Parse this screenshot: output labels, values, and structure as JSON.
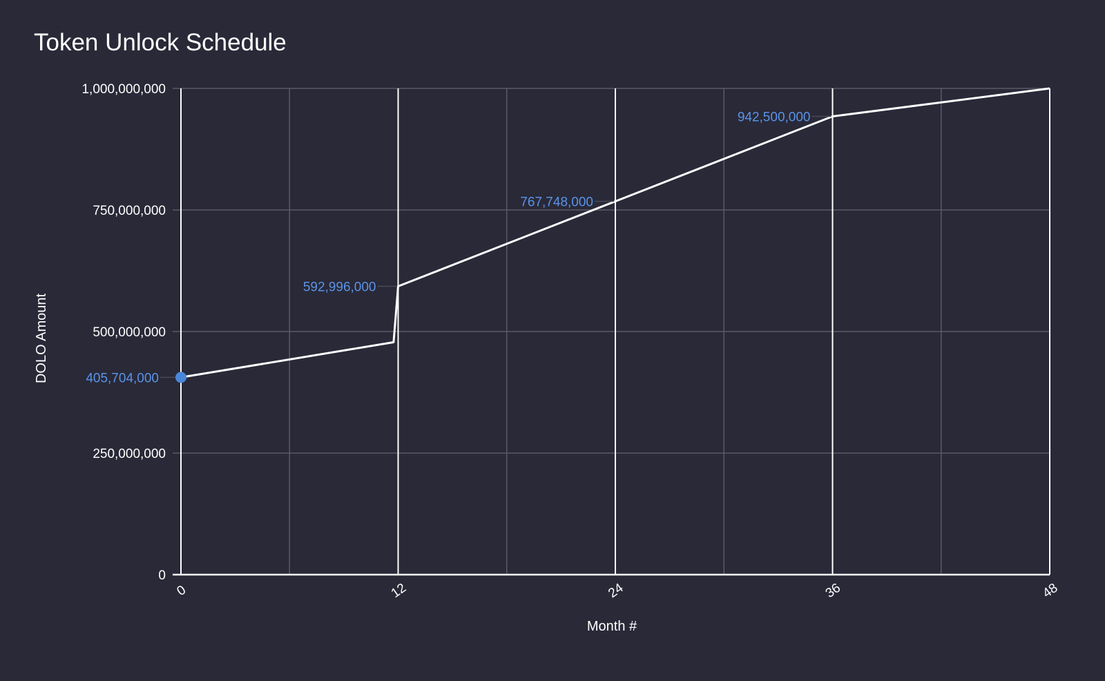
{
  "chart_data": {
    "type": "line",
    "title": "Token Unlock Schedule",
    "xlabel": "Month #",
    "ylabel": "DOLO Amount",
    "xlim": [
      0,
      48
    ],
    "ylim": [
      0,
      1000000000
    ],
    "x_ticks": [
      "0",
      "12",
      "24",
      "36",
      "48"
    ],
    "y_ticks": [
      "0",
      "250,000,000",
      "500,000,000",
      "750,000,000",
      "1,000,000,000"
    ],
    "grid": true,
    "legend": "none",
    "series": [
      {
        "name": "DOLO Amount",
        "color": "#ffffff",
        "x": [
          0,
          11.75,
          12,
          24,
          36,
          48
        ],
        "values": [
          405704000,
          478000000,
          592996000,
          767748000,
          942500000,
          1000000000
        ]
      }
    ],
    "annotations": [
      {
        "x": 0,
        "y": 405704000,
        "label": "405,704,000"
      },
      {
        "x": 12,
        "y": 592996000,
        "label": "592,996,000"
      },
      {
        "x": 24,
        "y": 767748000,
        "label": "767,748,000"
      },
      {
        "x": 36,
        "y": 942500000,
        "label": "942,500,000"
      }
    ],
    "highlight_point": {
      "x": 0,
      "y": 405704000,
      "color": "#4a86d8"
    }
  },
  "colors": {
    "background": "#292938",
    "line": "#ffffff",
    "gridline": "#5a5a66",
    "label_accent": "#5b93e6"
  }
}
